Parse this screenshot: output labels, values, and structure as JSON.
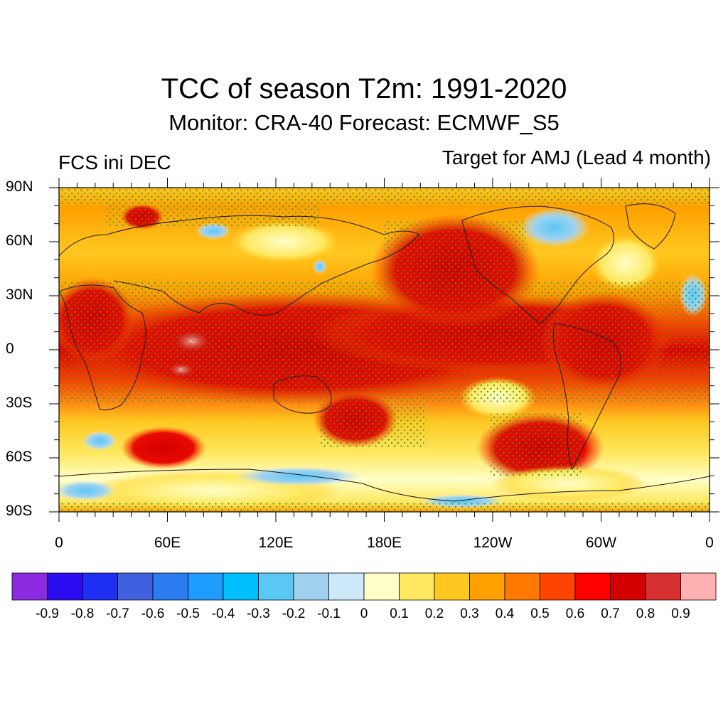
{
  "title": "TCC of season T2m: 1991-2020",
  "subtitle": "Monitor: CRA-40   Forecast: ECMWF_S5",
  "left_label": "FCS ini DEC",
  "right_label": "Target for AMJ (Lead 4 month)",
  "map": {
    "projection": "cylindrical-equidistant",
    "lat_labels": [
      "90N",
      "60N",
      "30N",
      "0",
      "30S",
      "60S",
      "90S"
    ],
    "lon_labels": [
      "0",
      "60E",
      "120E",
      "180E",
      "120W",
      "60W",
      "0"
    ],
    "stippling_color": "#2ca02c",
    "stippling_meaning": ""
  },
  "colorbar": {
    "labels": [
      "-0.9",
      "-0.8",
      "-0.7",
      "-0.6",
      "-0.5",
      "-0.4",
      "-0.3",
      "-0.2",
      "-0.1",
      "0",
      "0.1",
      "0.2",
      "0.3",
      "0.4",
      "0.5",
      "0.6",
      "0.7",
      "0.8",
      "0.9"
    ],
    "colors": [
      "#8a2be2",
      "#2e0cf2",
      "#1e2ef2",
      "#4060e0",
      "#2e7cf2",
      "#1e9cff",
      "#00bfff",
      "#5ac8f5",
      "#a0d2f0",
      "#cde8f8",
      "#ffffc8",
      "#ffe860",
      "#ffc820",
      "#ffa000",
      "#ff7800",
      "#ff4400",
      "#ff0000",
      "#d40000",
      "#d83030",
      "#ffb0b0"
    ]
  }
}
